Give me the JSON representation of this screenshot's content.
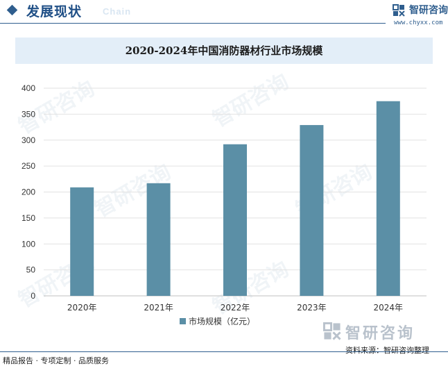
{
  "header": {
    "section_title": "发展现状",
    "section_subtitle": "Chain",
    "brand_name": "智研咨询",
    "brand_url": "www.chyxx.com"
  },
  "chart_data": {
    "type": "bar",
    "title": "2020-2024年中国消防器材行业市场规模",
    "categories": [
      "2020年",
      "2021年",
      "2022年",
      "2023年",
      "2024年"
    ],
    "series": [
      {
        "name": "市场规模（亿元）",
        "values": [
          209,
          217,
          292,
          329,
          375
        ],
        "color": "#5b8fa6"
      }
    ],
    "xlabel": "",
    "ylabel": "",
    "ylim": [
      0,
      400
    ],
    "yticks": [
      0,
      50,
      100,
      150,
      200,
      250,
      300,
      350,
      400
    ],
    "ytick_labels": [
      "0",
      "50",
      "100",
      "150",
      "200",
      "250",
      "300",
      "350",
      "400"
    ],
    "grid": true,
    "legend_position": "bottom-center"
  },
  "watermark": {
    "text": "智研咨询"
  },
  "footer": {
    "brand_name": "智研咨询",
    "source": "资料来源：智研咨询整理",
    "services": "精品报告 · 专项定制 · 品质服务"
  }
}
